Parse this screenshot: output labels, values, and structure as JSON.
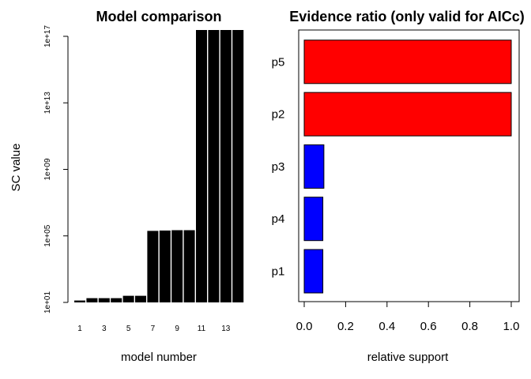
{
  "chart_data": [
    {
      "type": "bar",
      "title": "Model comparison",
      "xlabel": "model number",
      "ylabel": "SC value",
      "y_scale": "log",
      "ylim": [
        10,
        1e+17
      ],
      "y_ticks": [
        "1e+01",
        "1e+05",
        "1e+09",
        "1e+13",
        "1e+17"
      ],
      "y_tick_values": [
        10,
        100000,
        1000000000,
        10000000000000,
        100000000000000000
      ],
      "x_ticks": [
        "1",
        "3",
        "5",
        "7",
        "9",
        "11",
        "13"
      ],
      "categories": [
        "1",
        "2",
        "3",
        "4",
        "5",
        "6",
        "7",
        "8",
        "9",
        "10",
        "11",
        "12",
        "13",
        "14"
      ],
      "values": [
        13,
        18,
        18,
        18,
        25,
        25,
        200000,
        210000,
        220000,
        220000,
        3e+17,
        3e+17,
        3e+17,
        3e+17
      ],
      "bar_color": "#000000"
    },
    {
      "type": "bar",
      "orientation": "horizontal",
      "title": "Evidence ratio (only valid for AICc)",
      "xlabel": "relative support",
      "xlim": [
        0,
        1
      ],
      "x_ticks": [
        "0.0",
        "0.2",
        "0.4",
        "0.6",
        "0.8",
        "1.0"
      ],
      "x_tick_values": [
        0,
        0.2,
        0.4,
        0.6,
        0.8,
        1.0
      ],
      "categories": [
        "p1",
        "p4",
        "p3",
        "p2",
        "p5"
      ],
      "values": [
        0.09,
        0.09,
        0.095,
        1.0,
        1.0
      ],
      "colors": [
        "#0000ff",
        "#0000ff",
        "#0000ff",
        "#ff0000",
        "#ff0000"
      ]
    }
  ]
}
